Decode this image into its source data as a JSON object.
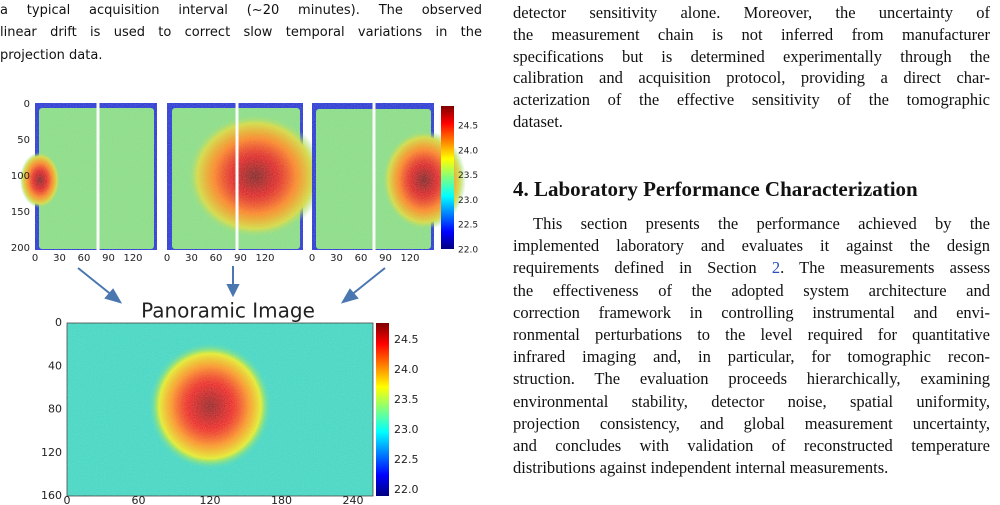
{
  "left_text": {
    "lines": [
      "a typical acquisition interval (~20 minutes). The observed",
      "linear drift is used to correct slow temporal variations in the",
      "projection data."
    ]
  },
  "figure": {
    "top_panels": {
      "yticks": [
        "0",
        "50",
        "100",
        "150",
        "200"
      ],
      "xticks": [
        "0",
        "30",
        "60",
        "90",
        "120"
      ],
      "colorbar_ticks": [
        "24.5",
        "24.0",
        "23.5",
        "23.0",
        "22.5",
        "22.0"
      ]
    },
    "panorama": {
      "title": "Panoramic Image",
      "yticks": [
        "0",
        "40",
        "80",
        "120",
        "160"
      ],
      "xticks": [
        "0",
        "60",
        "120",
        "180",
        "240"
      ],
      "colorbar_ticks": [
        "24.5",
        "24.0",
        "23.5",
        "23.0",
        "22.5",
        "22.0"
      ]
    }
  },
  "right_text": {
    "lines": [
      "detector sensitivity alone. Moreover, the uncertainty of",
      "the measurement chain is not inferred from manufacturer",
      "specifications but is determined experimentally through the",
      "calibration and acquisition protocol, providing a direct char-",
      "acterization of the effective sensitivity of the tomographic",
      "dataset."
    ]
  },
  "section": {
    "heading": "4. Laboratory Performance Characterization",
    "lines": [
      "This section presents the performance achieved by the",
      "implemented laboratory and evaluates it against the design",
      {
        "before": "requirements defined in Section ",
        "link": "2",
        "after": ". The measurements assess"
      },
      "the effectiveness of the adopted system architecture and",
      "correction framework in controlling instrumental and envi-",
      "ronmental perturbations to the level required for quantitative",
      "infrared imaging and, in particular, for tomographic recon-",
      "struction. The evaluation proceeds hierarchically, examining",
      "environmental stability, detector noise, spatial uniformity,",
      "projection consistency, and global measurement uncertainty,",
      "and concludes with validation of reconstructed temperature",
      "distributions against independent internal measurements."
    ]
  }
}
